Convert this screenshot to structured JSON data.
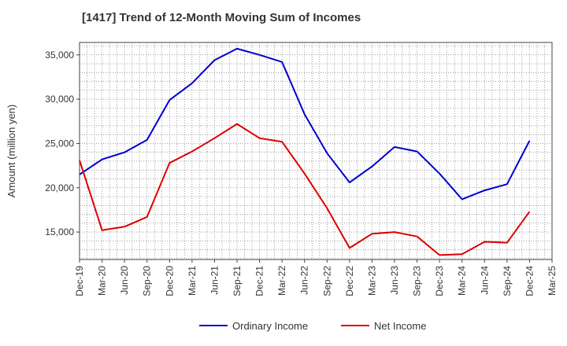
{
  "chart_data": {
    "type": "line",
    "title": "[1417]  Trend of 12-Month Moving Sum of Incomes",
    "xlabel": "",
    "ylabel": "Amount (million yen)",
    "ylim": [
      11900,
      36400
    ],
    "yticks": [
      15000,
      20000,
      25000,
      30000,
      35000
    ],
    "ytick_labels": [
      "15,000",
      "20,000",
      "25,000",
      "30,000",
      "35,000"
    ],
    "categories": [
      "Dec-19",
      "Mar-20",
      "Jun-20",
      "Sep-20",
      "Dec-20",
      "Mar-21",
      "Jun-21",
      "Sep-21",
      "Dec-21",
      "Mar-22",
      "Jun-22",
      "Sep-22",
      "Dec-22",
      "Mar-23",
      "Jun-23",
      "Sep-23",
      "Dec-23",
      "Mar-24",
      "Jun-24",
      "Sep-24",
      "Dec-24",
      "Mar-25"
    ],
    "grid": true,
    "legend_position": "bottom-center",
    "series": [
      {
        "name": "Ordinary Income",
        "color": "#0000cc",
        "values": [
          21500,
          23200,
          24000,
          25400,
          29900,
          31800,
          34400,
          35700,
          35000,
          34200,
          28300,
          23900,
          20600,
          22400,
          24600,
          24100,
          21600,
          18700,
          19700,
          20400,
          25300,
          null
        ]
      },
      {
        "name": "Net Income",
        "color": "#dd0000",
        "values": [
          23100,
          15200,
          15600,
          16700,
          22800,
          24100,
          25600,
          27200,
          25600,
          25200,
          21600,
          17700,
          13200,
          14800,
          15000,
          14500,
          12400,
          12500,
          13900,
          13800,
          17300,
          null
        ]
      }
    ]
  }
}
